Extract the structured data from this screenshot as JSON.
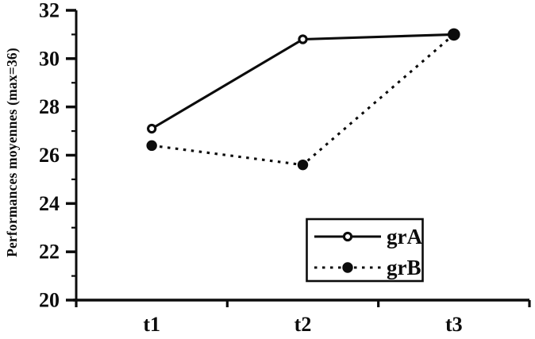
{
  "figure": {
    "kind": "scanned-line-chart",
    "background_color": "#ffffff"
  },
  "chart_data": {
    "type": "line",
    "title": "",
    "categories": [
      "t1",
      "t2",
      "t3"
    ],
    "series": [
      {
        "name": "grA",
        "values": [
          27.1,
          30.8,
          31.0
        ],
        "line_style": "solid",
        "marker": "open-circle"
      },
      {
        "name": "grB",
        "values": [
          26.4,
          25.6,
          31.0
        ],
        "line_style": "dotted",
        "marker": "filled-circle"
      }
    ],
    "xlabel": "",
    "ylabel": "Performances moyennes (max=36)",
    "ylim": [
      20,
      32
    ],
    "yticks": [
      20,
      22,
      24,
      26,
      28,
      30,
      32
    ],
    "minor_yticks": [
      21,
      23,
      25,
      27,
      29,
      31
    ],
    "grid": false,
    "legend_position": "inside-lower-right",
    "legend_box": true,
    "ink_color": "#0c0c0c"
  }
}
